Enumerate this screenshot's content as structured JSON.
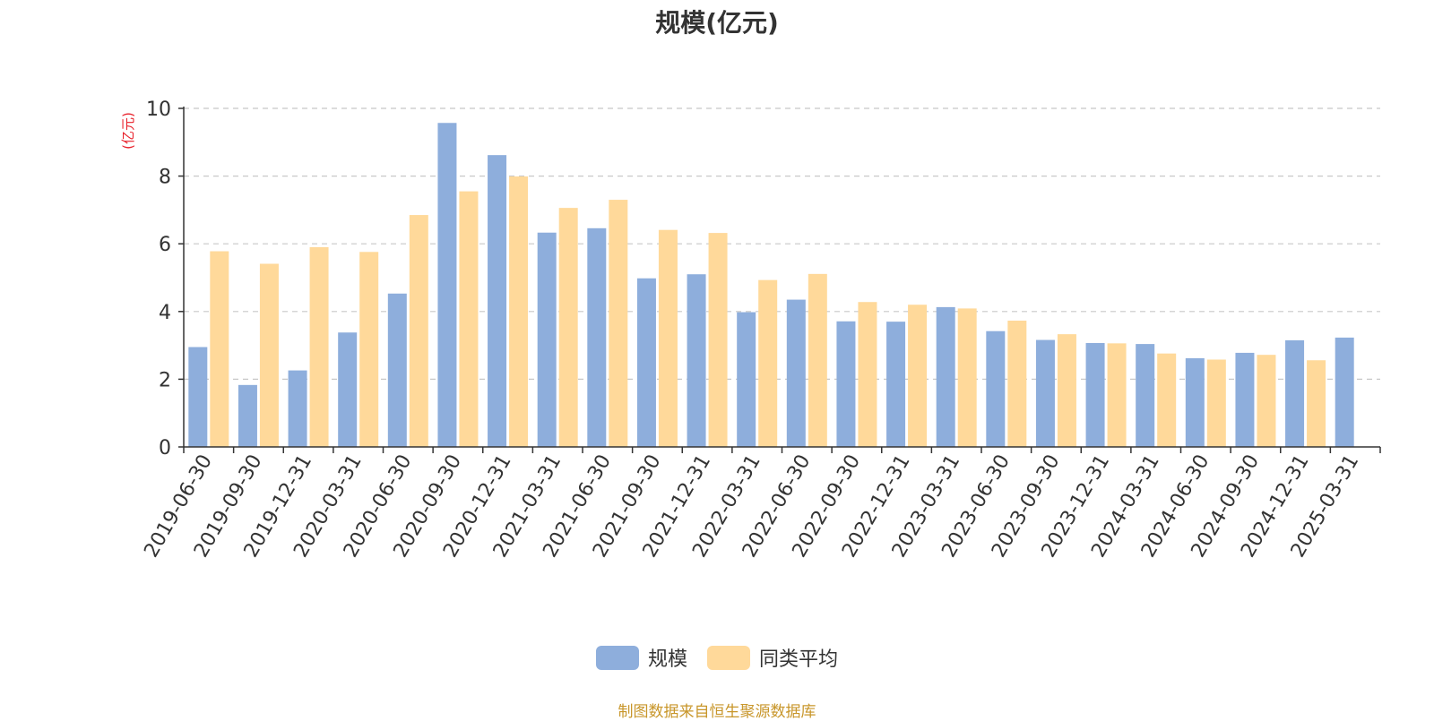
{
  "chart_data": {
    "type": "bar",
    "title": "规模(亿元)",
    "ylabel": "(亿元)",
    "xlabel": "",
    "ylim": [
      0,
      10
    ],
    "yticks": [
      0,
      2,
      4,
      6,
      8,
      10
    ],
    "grid": true,
    "legend_position": "bottom-center",
    "categories": [
      "2019-06-30",
      "2019-09-30",
      "2019-12-31",
      "2020-03-31",
      "2020-06-30",
      "2020-09-30",
      "2020-12-31",
      "2021-03-31",
      "2021-06-30",
      "2021-09-30",
      "2021-12-31",
      "2022-03-31",
      "2022-06-30",
      "2022-09-30",
      "2022-12-31",
      "2023-03-31",
      "2023-06-30",
      "2023-09-30",
      "2023-12-31",
      "2024-03-31",
      "2024-06-30",
      "2024-09-30",
      "2024-12-31",
      "2025-03-31"
    ],
    "series": [
      {
        "name": "规模",
        "color": "#8eaedc",
        "values": [
          2.95,
          1.83,
          2.26,
          3.38,
          4.53,
          9.57,
          8.62,
          6.33,
          6.46,
          4.98,
          5.1,
          3.98,
          4.35,
          3.71,
          3.7,
          4.13,
          3.42,
          3.16,
          3.07,
          3.04,
          2.62,
          2.78,
          3.15,
          3.23
        ]
      },
      {
        "name": "同类平均",
        "color": "#ffd99a",
        "values": [
          5.78,
          5.41,
          5.9,
          5.76,
          6.85,
          7.55,
          7.99,
          7.06,
          7.3,
          6.41,
          6.32,
          4.93,
          5.11,
          4.28,
          4.2,
          4.09,
          3.73,
          3.33,
          3.06,
          2.76,
          2.58,
          2.72,
          2.56,
          null
        ]
      }
    ]
  },
  "legend": {
    "items": [
      {
        "label": "规模",
        "color": "#8eaedc"
      },
      {
        "label": "同类平均",
        "color": "#ffd99a"
      }
    ]
  },
  "footer": {
    "source_text": "制图数据来自恒生聚源数据库"
  }
}
